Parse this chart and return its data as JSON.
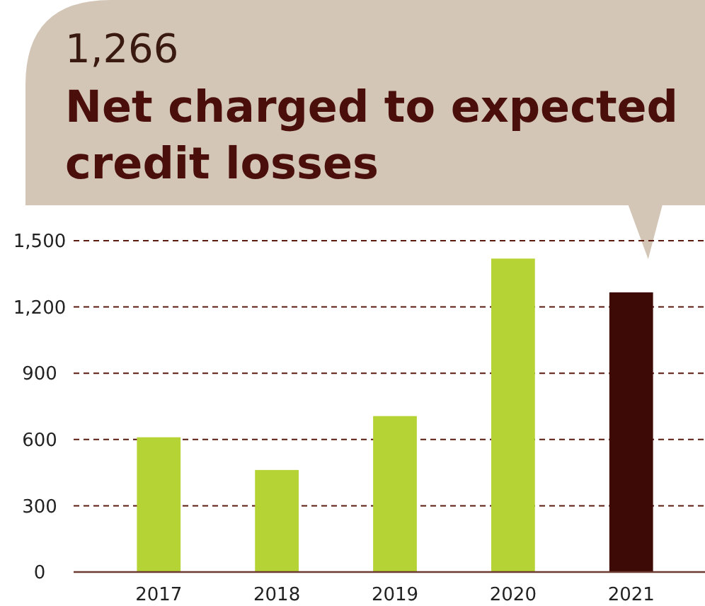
{
  "chart_data": {
    "type": "bar",
    "title": "Net charged to expected credit losses",
    "annotations": [
      "1,266"
    ],
    "categories": [
      "2017",
      "2018",
      "2019",
      "2020",
      "2021"
    ],
    "values": [
      610,
      462,
      706,
      1419,
      1266
    ],
    "colors": [
      "#b5d334",
      "#b5d334",
      "#b5d334",
      "#b5d334",
      "#3d0a05"
    ],
    "ylim": [
      0,
      1500
    ],
    "yticks": [
      {
        "value": 0,
        "label": "0"
      },
      {
        "value": 300,
        "label": "300"
      },
      {
        "value": 600,
        "label": "600"
      },
      {
        "value": 900,
        "label": "900"
      },
      {
        "value": 1200,
        "label": "1,200"
      },
      {
        "value": 1500,
        "label": "1,500"
      }
    ],
    "grid": "y"
  }
}
